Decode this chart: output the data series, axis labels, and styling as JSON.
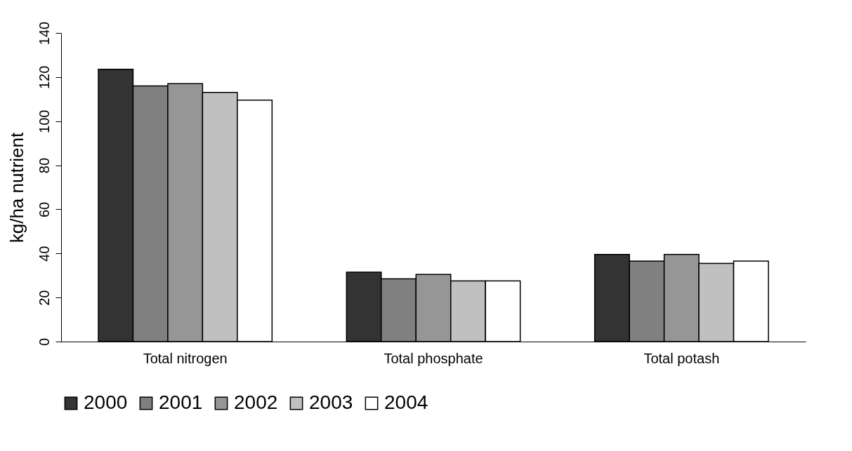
{
  "chart_data": {
    "type": "bar",
    "ylabel": "kg/ha nutrient",
    "categories": [
      "Total nitrogen",
      "Total phosphate",
      "Total potash"
    ],
    "series": [
      {
        "name": "2000",
        "color": "#333333",
        "values": [
          123.5,
          31.5,
          39.5
        ]
      },
      {
        "name": "2001",
        "color": "#808080",
        "values": [
          116,
          28.5,
          36.5
        ]
      },
      {
        "name": "2002",
        "color": "#969696",
        "values": [
          117,
          30.5,
          39.5
        ]
      },
      {
        "name": "2003",
        "color": "#c0c0c0",
        "values": [
          113,
          27.5,
          35.5
        ]
      },
      {
        "name": "2004",
        "color": "#ffffff",
        "values": [
          109.5,
          27.5,
          36.5
        ]
      }
    ],
    "ylim": [
      0,
      140
    ],
    "yticks": [
      0,
      20,
      40,
      60,
      80,
      100,
      120,
      140
    ],
    "grid": false,
    "legend": "bottom"
  }
}
